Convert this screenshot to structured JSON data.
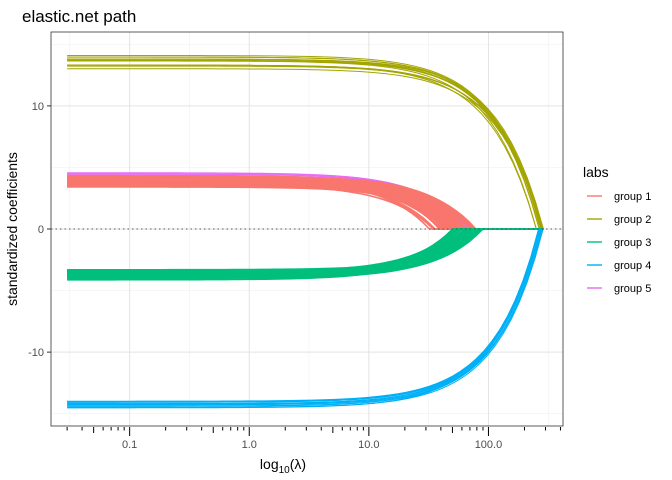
{
  "chart_data": {
    "type": "line",
    "title": "elastic.net path",
    "xlabel_base": "log",
    "xlabel_sub": "10",
    "xlabel_arg": "(λ)",
    "ylabel": "standardized coefficients",
    "x_scale": "log10",
    "xlim": [
      0.022,
      420
    ],
    "ylim": [
      -16,
      16
    ],
    "x_ticks": [
      0.1,
      1,
      10,
      100
    ],
    "x_tick_labels": [
      "0.1",
      "1.0",
      "10.0",
      "100.0"
    ],
    "y_ticks": [
      -10,
      0,
      10
    ],
    "y_tick_labels": [
      "-10",
      "0",
      "10"
    ],
    "grid": true,
    "reference_line": {
      "y": 0,
      "style": "dotted"
    },
    "legend": {
      "title": "labs",
      "placement": "right"
    },
    "lambda_start": 0.03,
    "series": [
      {
        "name": "group 1",
        "color": "#F8766D",
        "value_start": [
          3.3,
          4.5
        ],
        "lambda_zero": [
          32,
          80
        ]
      },
      {
        "name": "group 2",
        "color": "#A3A500",
        "value_start": [
          13.0,
          14.2
        ],
        "lambda_zero": [
          250,
          290
        ]
      },
      {
        "name": "group 3",
        "color": "#00BF7D",
        "value_start": [
          -4.2,
          -3.3
        ],
        "lambda_zero": [
          50,
          90
        ]
      },
      {
        "name": "group 4",
        "color": "#00B0F6",
        "value_start": [
          -14.6,
          -13.9
        ],
        "lambda_zero": [
          260,
          290
        ]
      },
      {
        "name": "group 5",
        "color": "#E76BF3",
        "value_start": [
          4.3,
          4.6
        ],
        "lambda_zero": [
          60,
          70
        ]
      }
    ]
  }
}
